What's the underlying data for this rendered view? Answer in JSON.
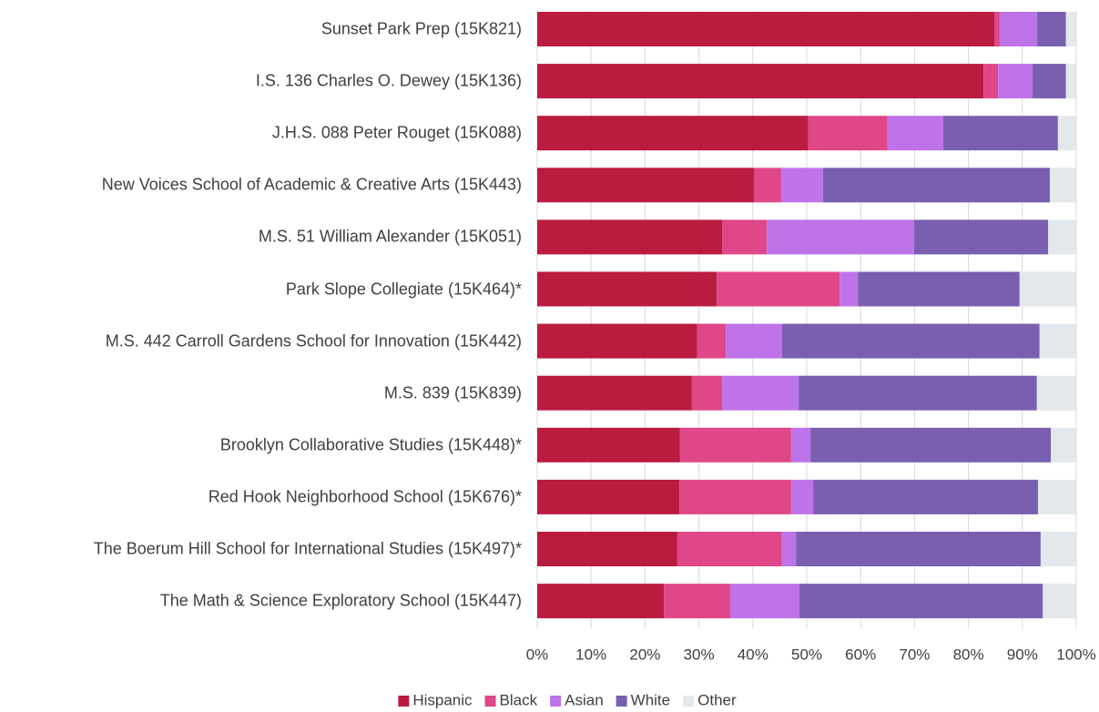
{
  "chart_data": {
    "type": "stacked_bar_horizontal",
    "categories": [
      "Sunset Park Prep (15K821)",
      "I.S. 136 Charles O. Dewey (15K136)",
      "J.H.S. 088 Peter Rouget (15K088)",
      "New Voices School of Academic & Creative Arts (15K443)",
      "M.S. 51 William Alexander (15K051)",
      "Park Slope Collegiate (15K464)*",
      "M.S. 442 Carroll Gardens School for Innovation (15K442)",
      "M.S. 839 (15K839)",
      "Brooklyn Collaborative Studies (15K448)*",
      "Red Hook Neighborhood School (15K676)*",
      "The Boerum Hill School for International Studies (15K497)*",
      "The Math & Science Exploratory School (15K447)"
    ],
    "series": [
      {
        "name": "Hispanic",
        "color": "#b91c3f",
        "values": [
          84.8,
          82.8,
          50.3,
          40.2,
          34.3,
          33.3,
          29.7,
          28.7,
          26.5,
          26.4,
          26.0,
          23.5
        ]
      },
      {
        "name": "Black",
        "color": "#df4788",
        "values": [
          1.0,
          2.7,
          14.7,
          5.1,
          8.3,
          22.8,
          5.3,
          5.6,
          20.6,
          20.7,
          19.4,
          12.3
        ]
      },
      {
        "name": "Asian",
        "color": "#bf73e8",
        "values": [
          6.9,
          6.4,
          10.3,
          7.7,
          27.3,
          3.4,
          10.4,
          14.2,
          3.6,
          4.1,
          2.6,
          12.8
        ]
      },
      {
        "name": "White",
        "color": "#7a5fb0",
        "values": [
          5.4,
          6.2,
          21.3,
          42.1,
          24.9,
          30.0,
          47.8,
          44.2,
          44.6,
          41.7,
          45.4,
          45.2
        ]
      },
      {
        "name": "Other",
        "color": "#e2e8ec",
        "values": [
          1.9,
          1.9,
          3.4,
          4.9,
          5.2,
          10.5,
          6.8,
          7.3,
          4.7,
          7.1,
          6.6,
          6.2
        ]
      }
    ],
    "xlim": [
      0,
      100
    ],
    "xticks": [
      {
        "value": 0,
        "label": "0%"
      },
      {
        "value": 10,
        "label": "10%"
      },
      {
        "value": 20,
        "label": "20%"
      },
      {
        "value": 30,
        "label": "30%"
      },
      {
        "value": 40,
        "label": "40%"
      },
      {
        "value": 50,
        "label": "50%"
      },
      {
        "value": 60,
        "label": "60%"
      },
      {
        "value": 70,
        "label": "70%"
      },
      {
        "value": 80,
        "label": "80%"
      },
      {
        "value": 90,
        "label": "90%"
      },
      {
        "value": 100,
        "label": "100%"
      }
    ],
    "grid": true,
    "legend": "bottom"
  }
}
